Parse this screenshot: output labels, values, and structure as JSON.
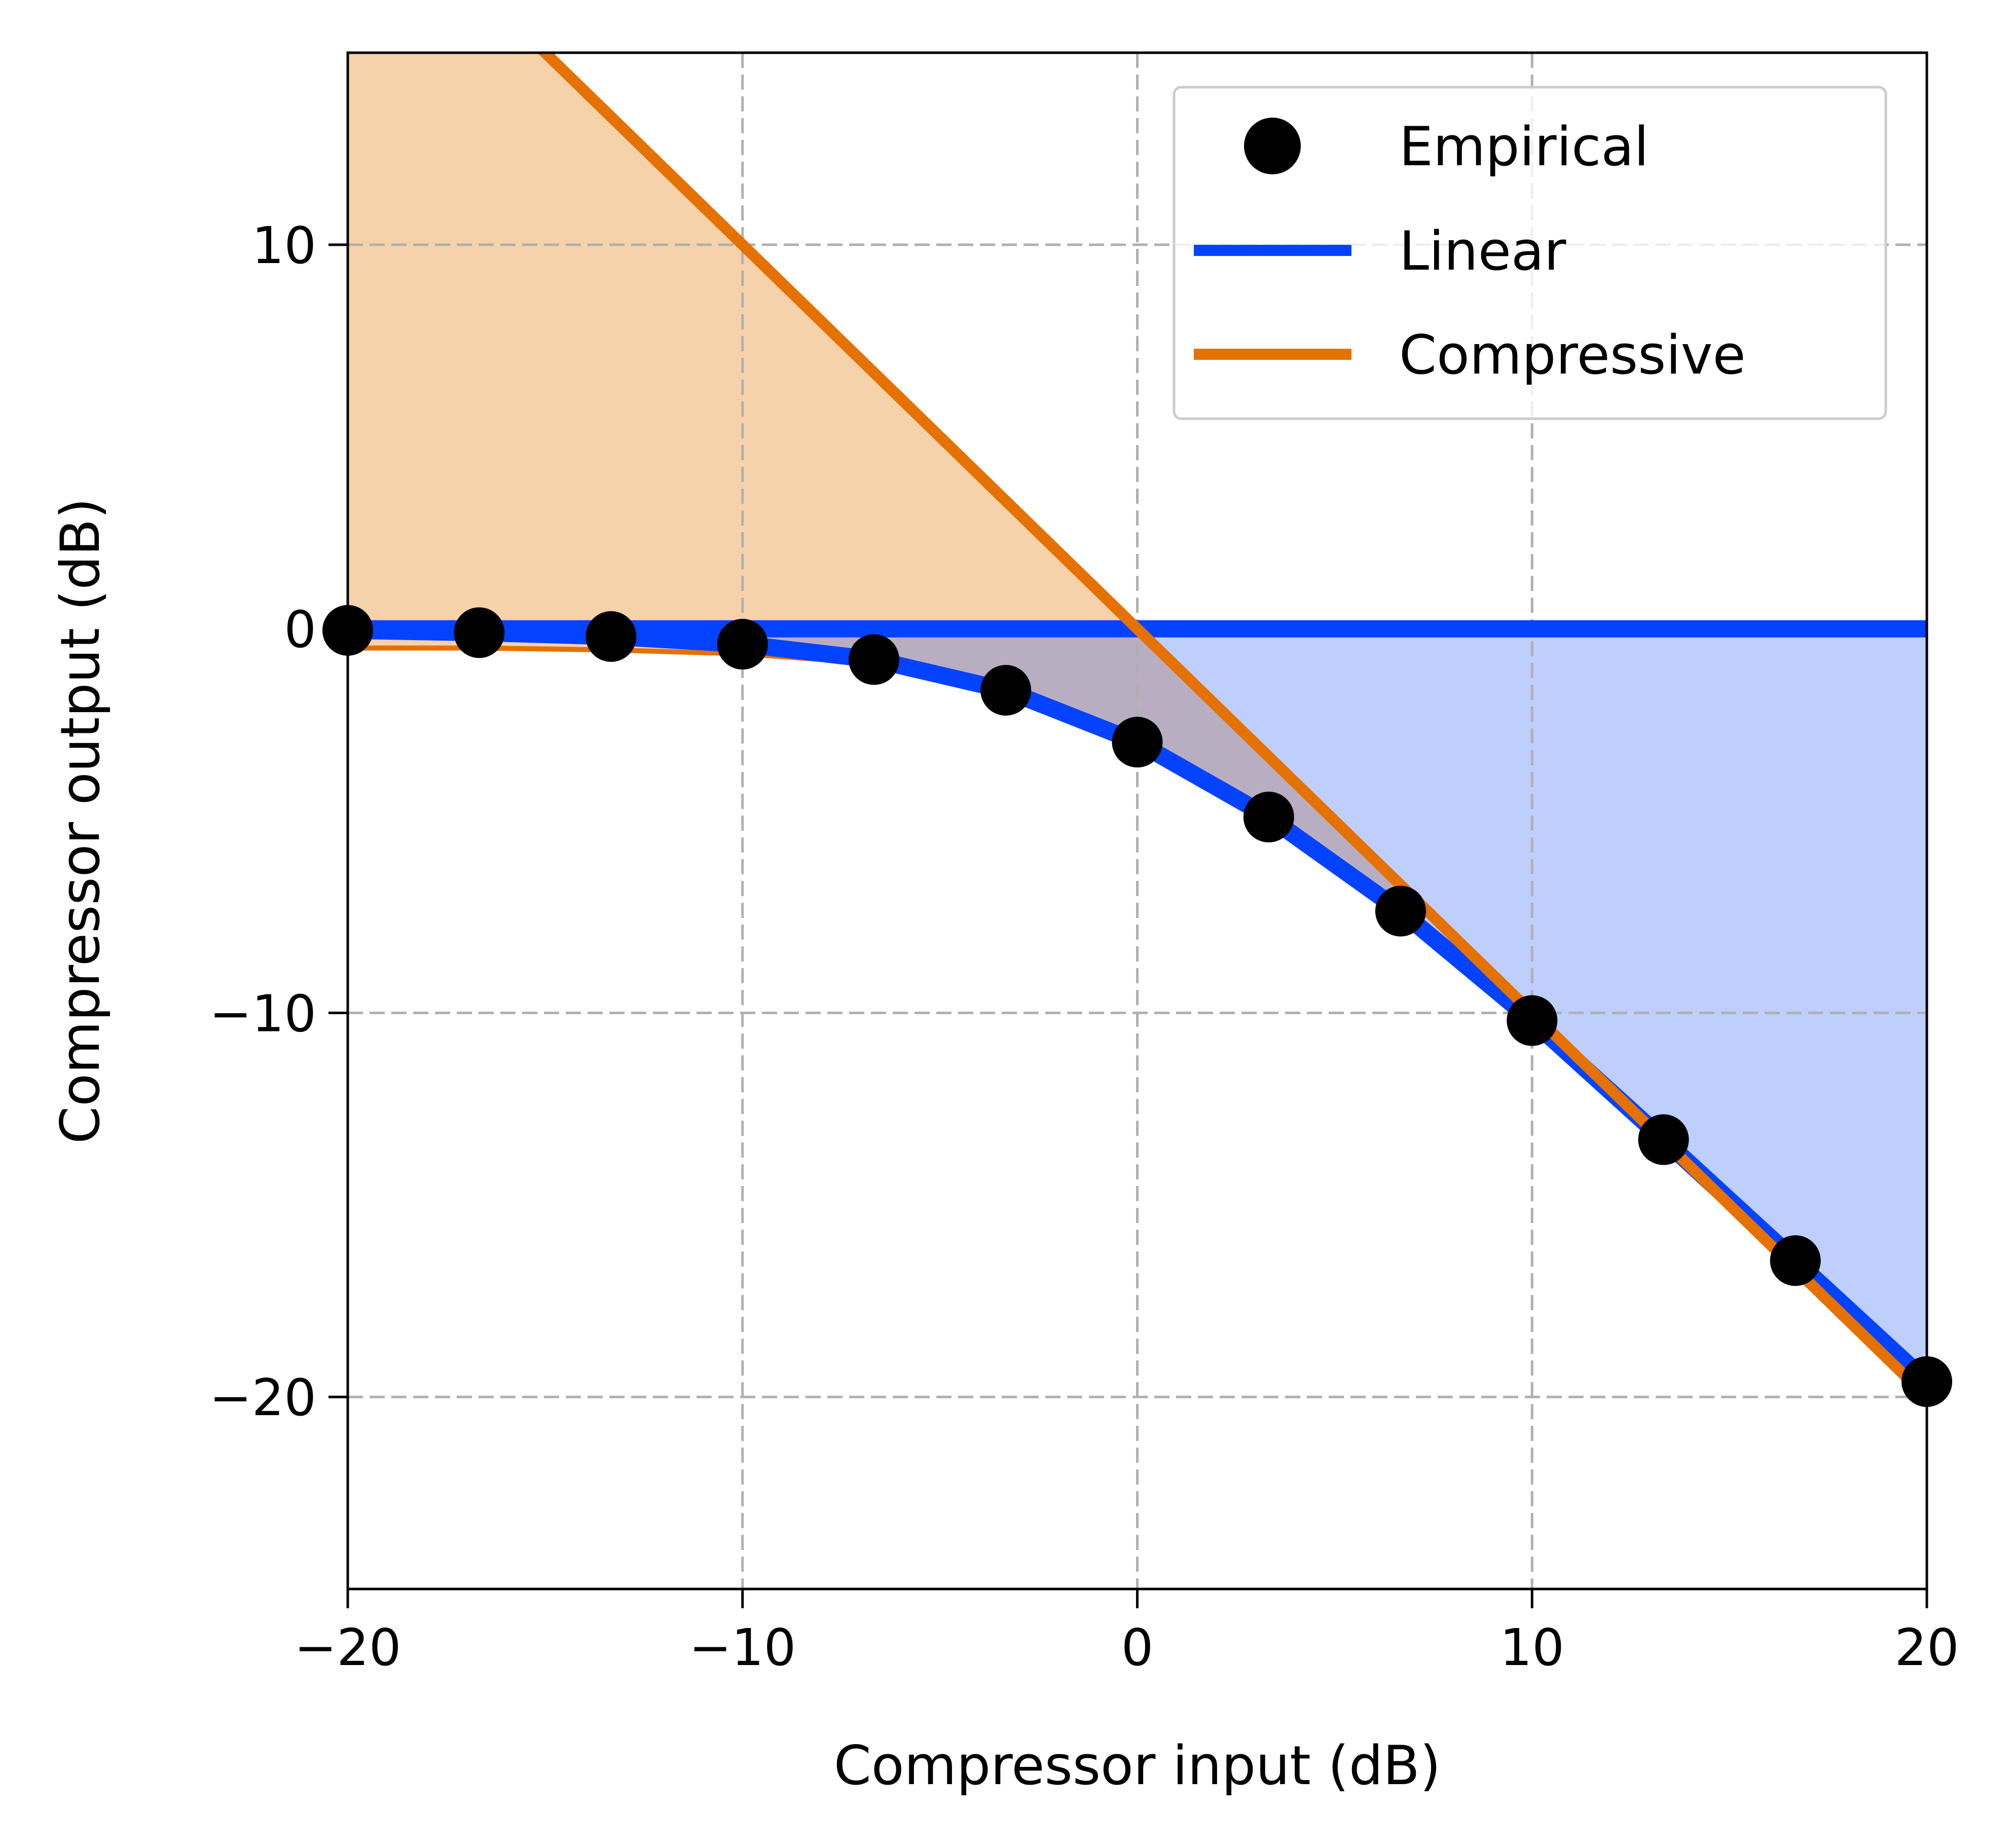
{
  "chart_data": {
    "type": "line",
    "title": "",
    "xlabel": "Compressor input (dB)",
    "ylabel": "Compressor output (dB)",
    "xlim": [
      -20,
      20
    ],
    "ylim": [
      -25,
      15
    ],
    "xticks": [
      -20,
      -10,
      0,
      10,
      20
    ],
    "yticks": [
      -20,
      -10,
      0,
      10
    ],
    "x_tick_labels": [
      "−20",
      "−10",
      "0",
      "10",
      "20"
    ],
    "y_tick_labels": [
      "−20",
      "−10",
      "0",
      "10"
    ],
    "grid": true,
    "legend_position": "top-right",
    "colors": {
      "empirical": "#000000",
      "linear": "#0343ff",
      "compressive": "#e57100",
      "compressive_fill": "#f6d2aa",
      "linear_fill": "#bfcffd",
      "overlap_fill": "#b9aec1",
      "grid": "#b0b0b0"
    },
    "series": [
      {
        "name": "Empirical",
        "style": "markers",
        "x": [
          -20,
          -16.67,
          -13.33,
          -10,
          -6.67,
          -3.33,
          0,
          3.33,
          6.67,
          10,
          13.33,
          16.67,
          20
        ],
        "y": [
          -0.04,
          -0.1,
          -0.2,
          -0.4,
          -0.8,
          -1.6,
          -2.95,
          -4.9,
          -7.35,
          -10.2,
          -13.3,
          -16.45,
          -19.6
        ]
      },
      {
        "name": "Linear",
        "style": "line",
        "x": [
          -20,
          -16.67,
          -13.33,
          -10,
          -6.67,
          -3.33,
          0,
          3.33,
          6.67,
          10,
          13.33,
          16.67,
          20
        ],
        "y": [
          -0.04,
          -0.1,
          -0.2,
          -0.4,
          -0.8,
          -1.6,
          -2.95,
          -4.9,
          -7.35,
          -10.2,
          -13.3,
          -16.45,
          -19.6
        ],
        "extra_x": [
          -20,
          20
        ],
        "extra_y": [
          0,
          0
        ]
      },
      {
        "name": "Compressive",
        "style": "line",
        "x": [
          -20,
          -10,
          0,
          10,
          20
        ],
        "y": [
          20,
          10,
          0,
          -10,
          -20
        ],
        "curve_x": [
          -20,
          -16.67,
          -13.33,
          -10,
          -6.67,
          -3.33,
          0
        ],
        "curve_y": [
          -0.5,
          -0.5,
          -0.55,
          -0.65,
          -0.9,
          -1.6,
          -2.95
        ]
      }
    ]
  }
}
